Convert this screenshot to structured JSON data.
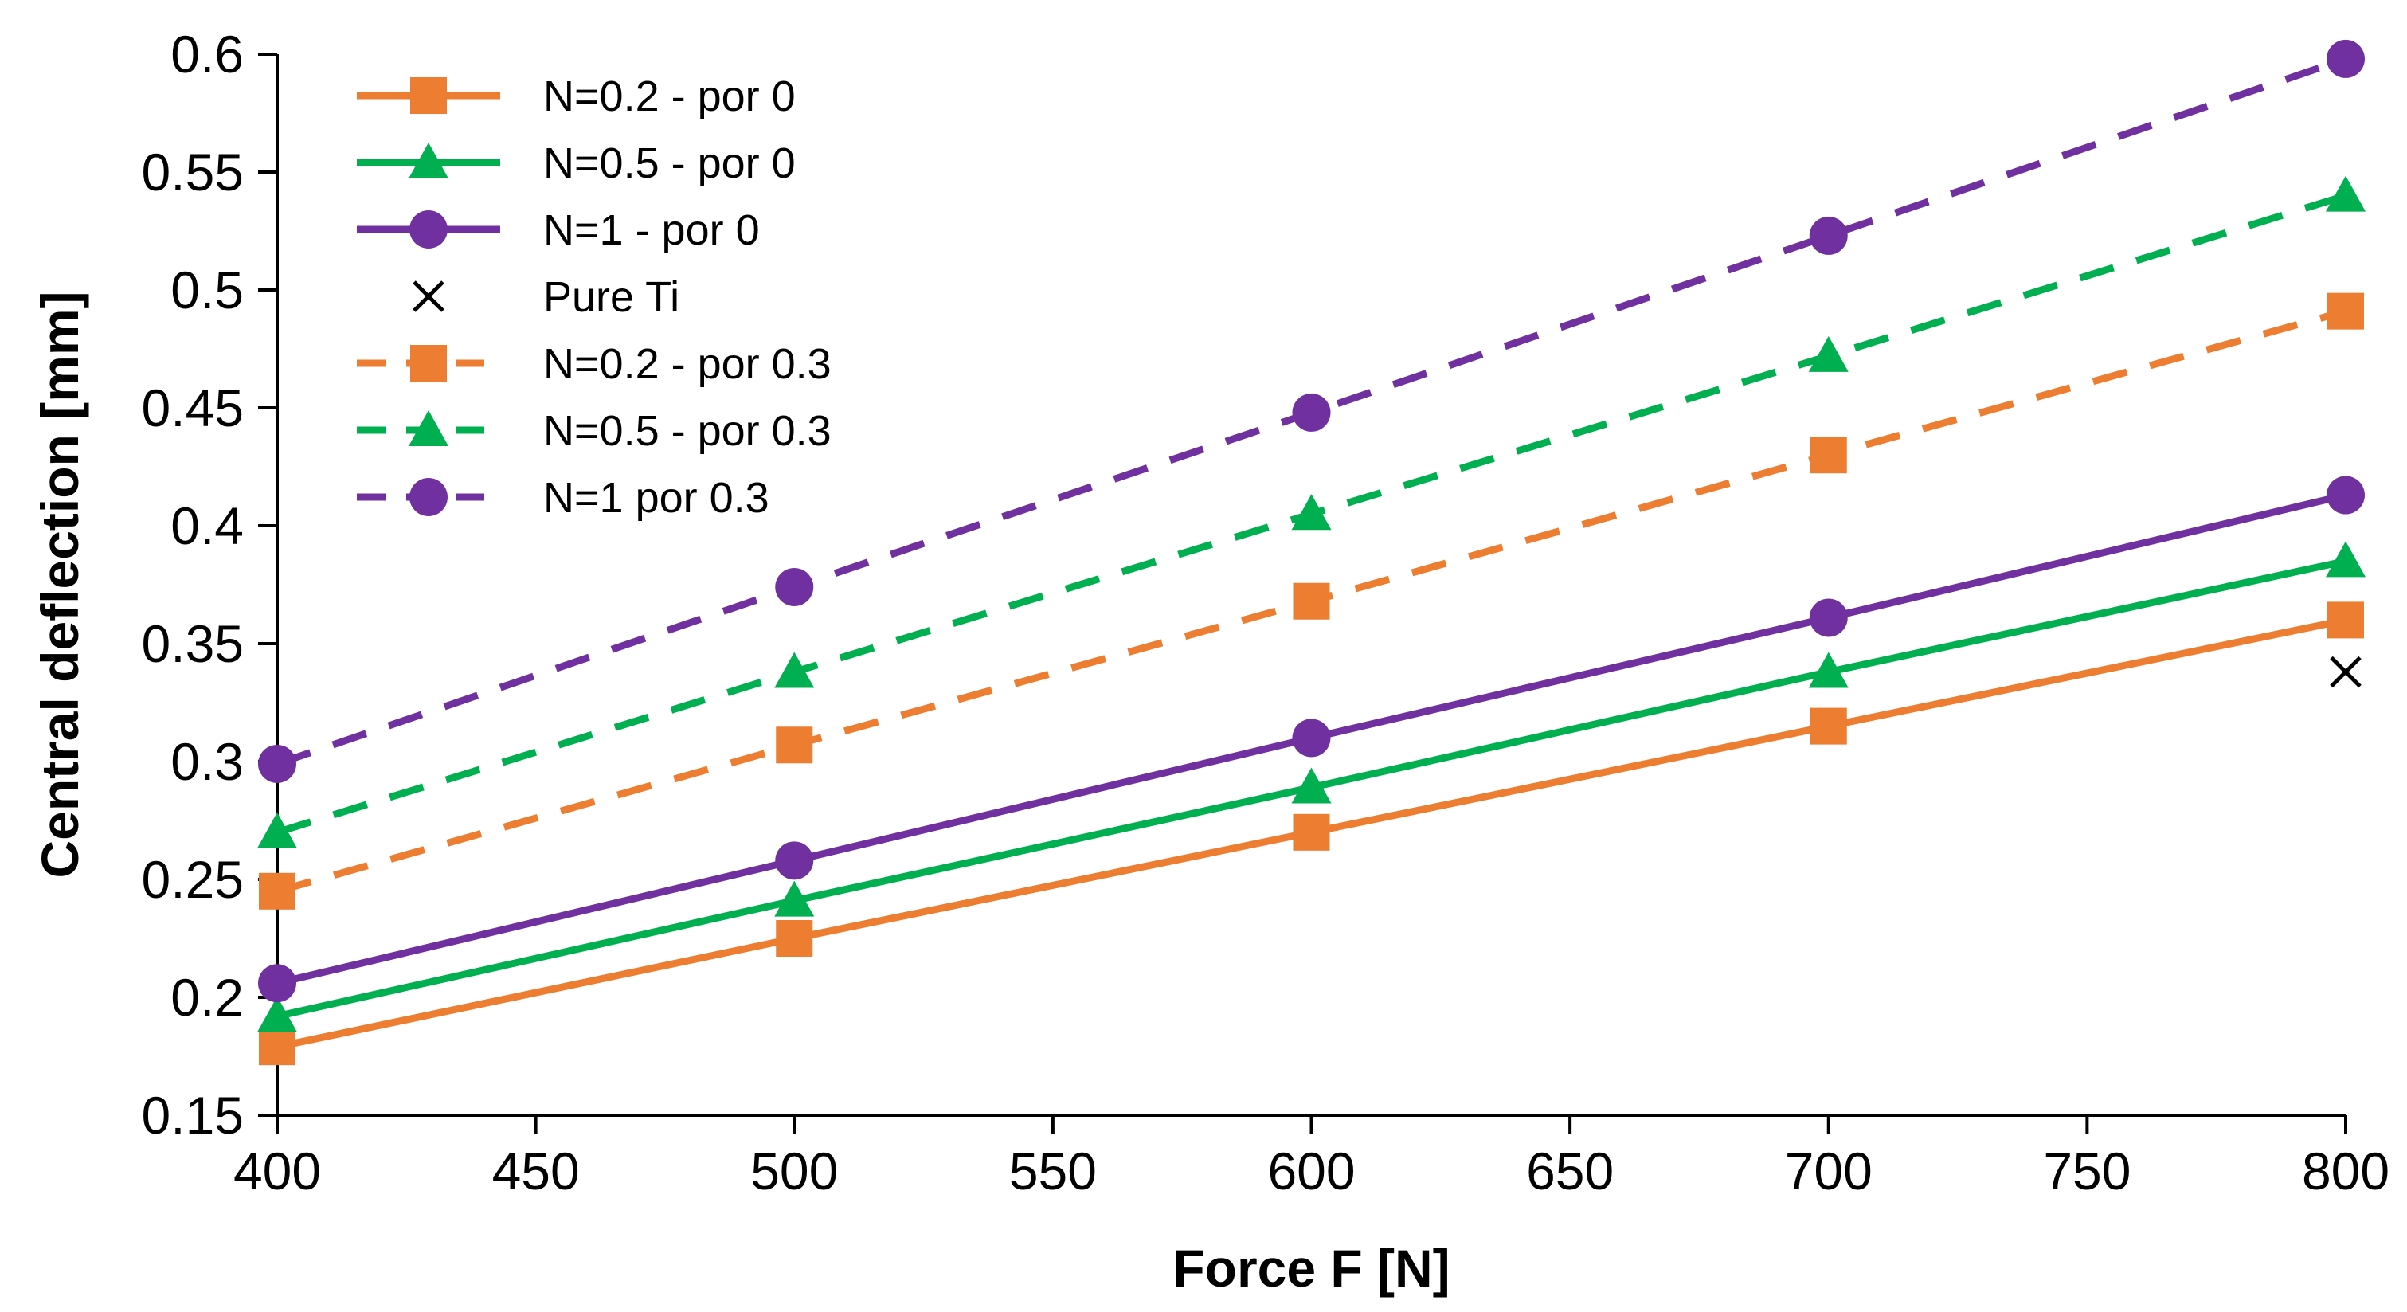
{
  "chart_data": {
    "type": "line",
    "title": "",
    "xlabel": "Force F [N]",
    "ylabel": "Central deflection [mm]",
    "xlim": [
      400,
      800
    ],
    "ylim": [
      0.15,
      0.6
    ],
    "xticks": [
      400,
      450,
      500,
      550,
      600,
      650,
      700,
      750,
      800
    ],
    "yticks": [
      0.15,
      0.2,
      0.25,
      0.3,
      0.35,
      0.4,
      0.45,
      0.5,
      0.55,
      0.6
    ],
    "xtick_labels": [
      "400",
      "450",
      "500",
      "550",
      "600",
      "650",
      "700",
      "750",
      "800"
    ],
    "ytick_labels": [
      "0.15",
      "0.2",
      "0.25",
      "0.3",
      "0.35",
      "0.4",
      "0.45",
      "0.5",
      "0.55",
      "0.6"
    ],
    "grid": false,
    "legend_position": "top-left",
    "x": [
      400,
      500,
      600,
      700,
      800
    ],
    "series": [
      {
        "name": "N=0.2 - por 0",
        "color": "#ED7D31",
        "dash": "solid",
        "marker": "square",
        "values": [
          0.179,
          0.225,
          0.27,
          0.315,
          0.36
        ]
      },
      {
        "name": "N=0.5 - por 0",
        "color": "#00B050",
        "dash": "solid",
        "marker": "triangle",
        "values": [
          0.192,
          0.241,
          0.289,
          0.338,
          0.385
        ]
      },
      {
        "name": "N=1 - por 0",
        "color": "#7030A0",
        "dash": "solid",
        "marker": "circle",
        "values": [
          0.206,
          0.258,
          0.31,
          0.361,
          0.413
        ]
      },
      {
        "name": "Pure Ti",
        "color": "#000000",
        "dash": "none",
        "marker": "x",
        "x": [
          800
        ],
        "values": [
          0.338
        ]
      },
      {
        "name": "N=0.2 - por 0.3",
        "color": "#ED7D31",
        "dash": "dashed",
        "marker": "square",
        "values": [
          0.245,
          0.307,
          0.368,
          0.43,
          0.491
        ]
      },
      {
        "name": "N=0.5 - por 0.3",
        "color": "#00B050",
        "dash": "dashed",
        "marker": "triangle",
        "values": [
          0.27,
          0.338,
          0.405,
          0.472,
          0.54
        ]
      },
      {
        "name": "N=1 por 0.3",
        "color": "#7030A0",
        "dash": "dashed",
        "marker": "circle",
        "values": [
          0.299,
          0.374,
          0.448,
          0.523,
          0.598
        ]
      }
    ]
  }
}
